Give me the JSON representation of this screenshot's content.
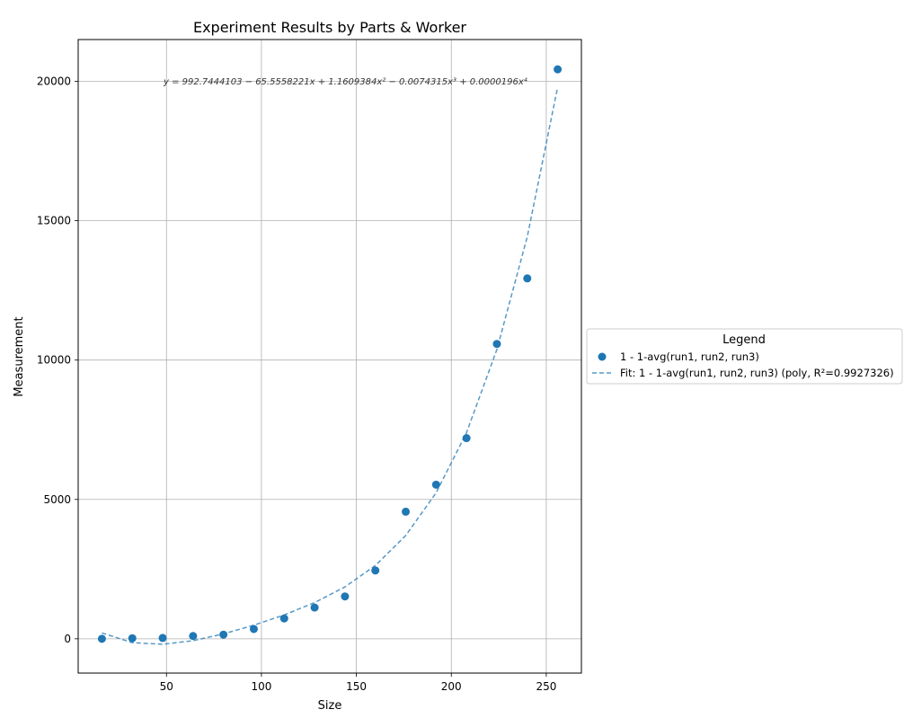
{
  "chart_data": {
    "type": "scatter",
    "title": "Experiment Results by Parts & Worker",
    "xlabel": "Size",
    "ylabel": "Measurement",
    "xlim": [
      3.5,
      268.5
    ],
    "ylim": [
      -1230,
      21500
    ],
    "xticks": [
      50,
      100,
      150,
      200,
      250
    ],
    "yticks": [
      0,
      5000,
      10000,
      15000,
      20000
    ],
    "grid": true,
    "series": [
      {
        "name": "1 - 1-avg(run1, run2, run3)",
        "kind": "scatter",
        "color": "#1f77b4",
        "x": [
          16,
          32,
          48,
          64,
          80,
          96,
          112,
          128,
          144,
          160,
          176,
          192,
          208,
          224,
          240,
          256
        ],
        "y": [
          0,
          20,
          30,
          100,
          150,
          350,
          730,
          1120,
          1520,
          2450,
          4560,
          5530,
          7200,
          10580,
          12930,
          20430
        ]
      },
      {
        "name": "Fit: 1 - 1-avg(run1, run2, run3) (poly, R²=0.9927326)",
        "kind": "line",
        "style": "dashed",
        "color": "#1f77b4",
        "coefficients": [
          992.7444103,
          -65.5558221,
          1.1609384,
          -0.0074315,
          1.96e-05
        ],
        "x": [
          16,
          32,
          48,
          64,
          80,
          96,
          112,
          128,
          144,
          160,
          176,
          192,
          208,
          224,
          240,
          256
        ]
      }
    ],
    "annotation": "y = 992.7444103 − 65.5558221x + 1.1609384x² − 0.0074315x³ + 0.0000196x⁴",
    "legend": {
      "title": "Legend",
      "placement": "outside-right",
      "entries": [
        "1 - 1-avg(run1, run2, run3)",
        "Fit: 1 - 1-avg(run1, run2, run3) (poly, R²=0.9927326)"
      ]
    }
  }
}
